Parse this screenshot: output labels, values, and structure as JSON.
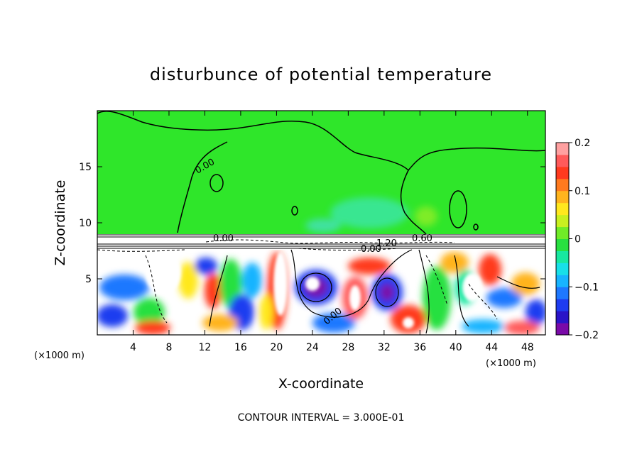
{
  "chart_data": {
    "type": "heatmap",
    "title": "disturbunce of potential temperature",
    "xlabel": "X-coordinate",
    "ylabel": "Z-coordinate",
    "x_unit": "(×1000 m)",
    "xlim": [
      0,
      50
    ],
    "ylim": [
      0,
      20
    ],
    "x_ticks": [
      4,
      8,
      12,
      16,
      20,
      24,
      28,
      32,
      36,
      40,
      44,
      48
    ],
    "y_ticks": [
      5,
      10,
      15
    ],
    "colorbar": {
      "range": [
        -0.2,
        0.2
      ],
      "ticks": [
        "0.2",
        "0.1",
        "0",
        "−0.1",
        "−0.2"
      ],
      "colors": [
        "#7a0aa8",
        "#2a14c8",
        "#1e3cf0",
        "#1e78ff",
        "#18b4ff",
        "#18e0e8",
        "#18e8a0",
        "#28e040",
        "#70ec28",
        "#c8f020",
        "#ffe81e",
        "#ffb41e",
        "#ff7a1e",
        "#ff3a1e",
        "#ff5a5a",
        "#ffa0a0"
      ]
    },
    "contour_labels": [
      "0.00",
      "0.00",
      "0.00",
      "0.00",
      "1.20",
      "0.60"
    ],
    "footer": "CONTOUR INTERVAL = 3.000E-01"
  }
}
